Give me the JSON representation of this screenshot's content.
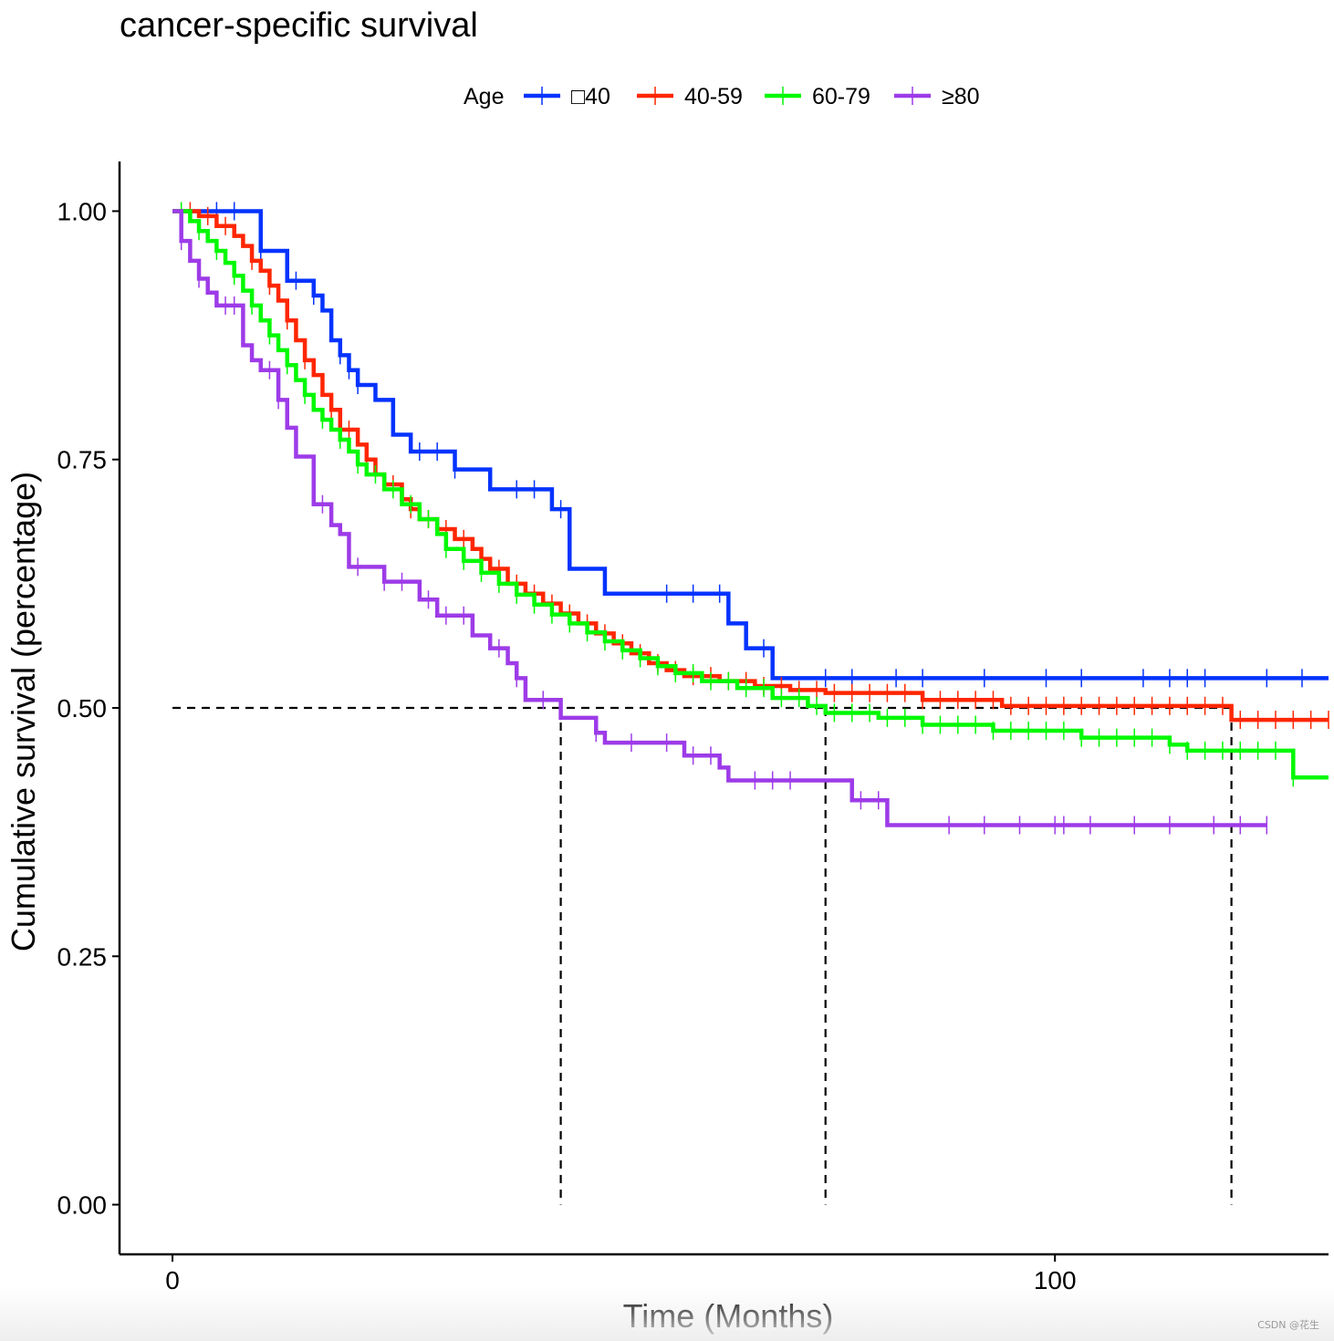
{
  "chart_data": {
    "type": "line",
    "title": "cancer-specific survival",
    "xlabel": "Time (Months)",
    "ylabel": "Cumulative survival (percentage)",
    "xlim": [
      -6,
      131
    ],
    "ylim": [
      -0.05,
      1.05
    ],
    "x_ticks": [
      0,
      100
    ],
    "y_ticks": [
      0,
      0.25,
      0.5,
      0.75,
      1.0
    ],
    "y_tick_labels": [
      "0.00",
      "0.25",
      "0.50",
      "0.75",
      "1.00"
    ],
    "legend": {
      "title": "Age",
      "position": "top"
    },
    "median_line": {
      "y": 0.5,
      "x_from": 0,
      "x_to": 120,
      "drops": [
        44,
        74,
        120
      ]
    },
    "series": [
      {
        "name": "□40",
        "color": "#0433ff",
        "steps": [
          [
            0,
            1.0
          ],
          [
            10,
            0.96
          ],
          [
            13,
            0.93
          ],
          [
            16,
            0.915
          ],
          [
            17,
            0.9
          ],
          [
            18,
            0.87
          ],
          [
            19,
            0.855
          ],
          [
            20,
            0.84
          ],
          [
            21,
            0.825
          ],
          [
            23,
            0.81
          ],
          [
            25,
            0.775
          ],
          [
            27,
            0.758
          ],
          [
            32,
            0.74
          ],
          [
            36,
            0.72
          ],
          [
            43,
            0.7
          ],
          [
            45,
            0.68
          ],
          [
            45,
            0.64
          ],
          [
            49,
            0.615
          ],
          [
            63,
            0.585
          ],
          [
            65,
            0.56
          ],
          [
            68,
            0.53
          ],
          [
            132,
            0.53
          ]
        ],
        "censors": [
          5,
          7,
          10,
          14,
          16,
          19,
          20,
          21,
          28,
          30,
          32,
          39,
          41,
          44,
          56,
          59,
          62,
          67,
          74,
          77,
          82,
          85,
          92,
          99,
          103,
          110,
          113,
          115,
          117,
          124,
          128
        ]
      },
      {
        "name": "40-59",
        "color": "#ff2600",
        "steps": [
          [
            0,
            1.0
          ],
          [
            3,
            0.995
          ],
          [
            5,
            0.985
          ],
          [
            7,
            0.975
          ],
          [
            8,
            0.965
          ],
          [
            9,
            0.95
          ],
          [
            10,
            0.94
          ],
          [
            11,
            0.925
          ],
          [
            12,
            0.91
          ],
          [
            13,
            0.89
          ],
          [
            14,
            0.87
          ],
          [
            15,
            0.85
          ],
          [
            16,
            0.835
          ],
          [
            17,
            0.815
          ],
          [
            18,
            0.8
          ],
          [
            19,
            0.78
          ],
          [
            21,
            0.765
          ],
          [
            22,
            0.75
          ],
          [
            23,
            0.735
          ],
          [
            24,
            0.725
          ],
          [
            26,
            0.71
          ],
          [
            27,
            0.7
          ],
          [
            28,
            0.69
          ],
          [
            30,
            0.68
          ],
          [
            32,
            0.67
          ],
          [
            34,
            0.66
          ],
          [
            35,
            0.65
          ],
          [
            36,
            0.64
          ],
          [
            38,
            0.625
          ],
          [
            40,
            0.615
          ],
          [
            42,
            0.605
          ],
          [
            44,
            0.595
          ],
          [
            46,
            0.585
          ],
          [
            48,
            0.575
          ],
          [
            50,
            0.565
          ],
          [
            52,
            0.555
          ],
          [
            54,
            0.545
          ],
          [
            56,
            0.538
          ],
          [
            58,
            0.532
          ],
          [
            62,
            0.527
          ],
          [
            66,
            0.522
          ],
          [
            70,
            0.518
          ],
          [
            74,
            0.515
          ],
          [
            85,
            0.508
          ],
          [
            94,
            0.502
          ],
          [
            120,
            0.488
          ],
          [
            132,
            0.488
          ]
        ],
        "censors": [
          2,
          4,
          6,
          9,
          11,
          13,
          15,
          18,
          20,
          22,
          25,
          27,
          29,
          31,
          33,
          35,
          37,
          39,
          41,
          43,
          45,
          47,
          49,
          51,
          53,
          55,
          57,
          59,
          61,
          63,
          65,
          67,
          69,
          71,
          73,
          75,
          77,
          79,
          81,
          83,
          85,
          87,
          89,
          91,
          93,
          95,
          97,
          99,
          101,
          103,
          105,
          107,
          109,
          111,
          113,
          115,
          117,
          119,
          121,
          123,
          125,
          127,
          129,
          131
        ]
      },
      {
        "name": "60-79",
        "color": "#00f900",
        "steps": [
          [
            0,
            1.0
          ],
          [
            2,
            0.99
          ],
          [
            3,
            0.98
          ],
          [
            4,
            0.97
          ],
          [
            5,
            0.96
          ],
          [
            6,
            0.948
          ],
          [
            7,
            0.935
          ],
          [
            8,
            0.92
          ],
          [
            9,
            0.905
          ],
          [
            10,
            0.89
          ],
          [
            11,
            0.875
          ],
          [
            12,
            0.86
          ],
          [
            13,
            0.845
          ],
          [
            14,
            0.83
          ],
          [
            15,
            0.815
          ],
          [
            16,
            0.8
          ],
          [
            17,
            0.79
          ],
          [
            18,
            0.78
          ],
          [
            19,
            0.77
          ],
          [
            20,
            0.758
          ],
          [
            21,
            0.745
          ],
          [
            22,
            0.735
          ],
          [
            24,
            0.72
          ],
          [
            26,
            0.705
          ],
          [
            28,
            0.69
          ],
          [
            30,
            0.675
          ],
          [
            31,
            0.66
          ],
          [
            33,
            0.648
          ],
          [
            35,
            0.636
          ],
          [
            37,
            0.625
          ],
          [
            39,
            0.614
          ],
          [
            41,
            0.604
          ],
          [
            43,
            0.594
          ],
          [
            45,
            0.585
          ],
          [
            47,
            0.576
          ],
          [
            49,
            0.567
          ],
          [
            51,
            0.558
          ],
          [
            53,
            0.55
          ],
          [
            55,
            0.542
          ],
          [
            57,
            0.535
          ],
          [
            60,
            0.527
          ],
          [
            64,
            0.52
          ],
          [
            68,
            0.51
          ],
          [
            72,
            0.502
          ],
          [
            74,
            0.495
          ],
          [
            80,
            0.49
          ],
          [
            85,
            0.483
          ],
          [
            93,
            0.477
          ],
          [
            103,
            0.47
          ],
          [
            113,
            0.463
          ],
          [
            115,
            0.457
          ],
          [
            127,
            0.43
          ],
          [
            132,
            0.43
          ]
        ],
        "censors": [
          1,
          3,
          5,
          7,
          9,
          11,
          13,
          15,
          17,
          19,
          21,
          23,
          25,
          27,
          29,
          31,
          33,
          35,
          37,
          39,
          41,
          43,
          45,
          47,
          49,
          51,
          53,
          55,
          57,
          59,
          61,
          63,
          65,
          67,
          69,
          71,
          73,
          75,
          77,
          79,
          81,
          83,
          85,
          87,
          89,
          91,
          93,
          95,
          97,
          99,
          101,
          103,
          105,
          107,
          109,
          111,
          113,
          115,
          117,
          119,
          121,
          123,
          125,
          127
        ]
      },
      {
        "name": "≥80",
        "color": "#9d3be8",
        "steps": [
          [
            0,
            1.0
          ],
          [
            1,
            0.97
          ],
          [
            2,
            0.95
          ],
          [
            3,
            0.932
          ],
          [
            4,
            0.918
          ],
          [
            5,
            0.905
          ],
          [
            8,
            0.865
          ],
          [
            9,
            0.85
          ],
          [
            10,
            0.84
          ],
          [
            12,
            0.81
          ],
          [
            13,
            0.782
          ],
          [
            14,
            0.753
          ],
          [
            16,
            0.705
          ],
          [
            18,
            0.684
          ],
          [
            19,
            0.675
          ],
          [
            20,
            0.642
          ],
          [
            24,
            0.627
          ],
          [
            28,
            0.609
          ],
          [
            30,
            0.593
          ],
          [
            34,
            0.573
          ],
          [
            36,
            0.56
          ],
          [
            38,
            0.545
          ],
          [
            39,
            0.53
          ],
          [
            40,
            0.508
          ],
          [
            44,
            0.49
          ],
          [
            48,
            0.475
          ],
          [
            49,
            0.465
          ],
          [
            58,
            0.452
          ],
          [
            62,
            0.44
          ],
          [
            63,
            0.427
          ],
          [
            77,
            0.407
          ],
          [
            81,
            0.382
          ],
          [
            124,
            0.382
          ]
        ],
        "censors": [
          1,
          3,
          6,
          7,
          11,
          12,
          17,
          21,
          24,
          26,
          29,
          31,
          33,
          37,
          39,
          42,
          48,
          52,
          56,
          59,
          61,
          66,
          68,
          70,
          78,
          80,
          88,
          92,
          96,
          100,
          101,
          104,
          109,
          113,
          118,
          121,
          124
        ]
      }
    ]
  },
  "watermark": "CSDN @花生"
}
